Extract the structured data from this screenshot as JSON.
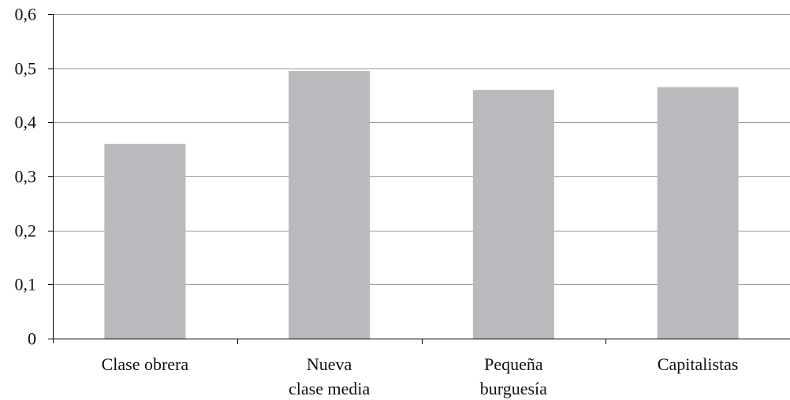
{
  "chart_data": {
    "type": "bar",
    "title": "",
    "xlabel": "",
    "ylabel": "",
    "categories": [
      [
        "Clase obrera"
      ],
      [
        "Nueva",
        "clase media"
      ],
      [
        "Pequeña",
        "burguesía"
      ],
      [
        "Capitalistas"
      ]
    ],
    "values": [
      0.36,
      0.495,
      0.46,
      0.465
    ],
    "ylim": [
      0,
      0.6
    ],
    "yticks": [
      0,
      0.1,
      0.2,
      0.3,
      0.4,
      0.5,
      0.6
    ],
    "ytick_labels": [
      "0",
      "0,1",
      "0,2",
      "0,3",
      "0,4",
      "0,5",
      "0,6"
    ],
    "grid": "horizontal",
    "bar_color": "#b9babd",
    "grid_color": "#9a9a9a",
    "axis_color": "#000000"
  }
}
